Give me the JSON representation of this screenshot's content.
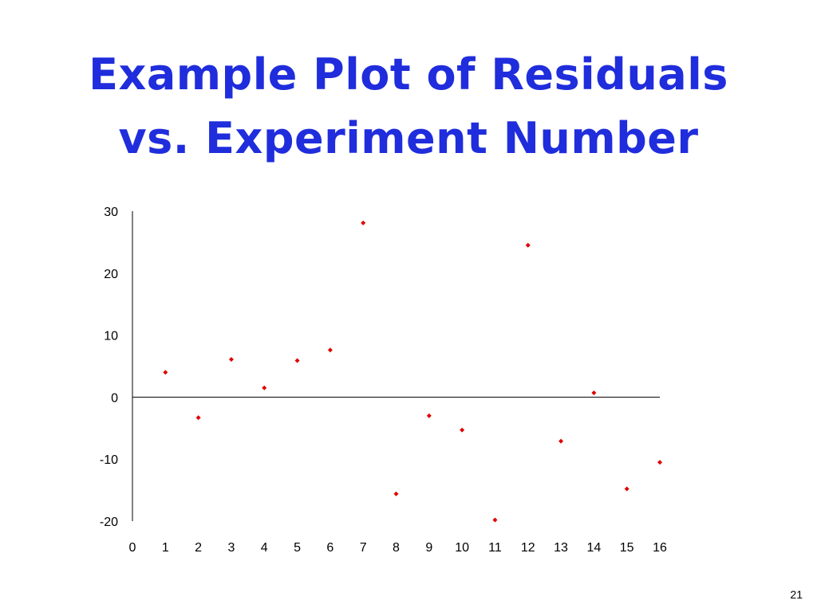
{
  "slide": {
    "title_line_1": "Example Plot of Residuals",
    "title_line_2": "vs. Experiment Number",
    "page_number": "21",
    "title_color": "#1f2ddc"
  },
  "chart_data": {
    "type": "scatter",
    "x": [
      1,
      2,
      3,
      4,
      5,
      6,
      7,
      8,
      9,
      10,
      11,
      12,
      13,
      14,
      15,
      16
    ],
    "y": [
      4,
      -3.3,
      6.1,
      1.5,
      5.9,
      7.6,
      28.1,
      -15.6,
      -3,
      -5.3,
      -19.8,
      24.5,
      -7.1,
      0.7,
      -14.8,
      -10.5
    ],
    "xlim": [
      0,
      16
    ],
    "ylim": [
      -20,
      30
    ],
    "x_ticks": [
      "0",
      "1",
      "2",
      "3",
      "4",
      "5",
      "6",
      "7",
      "8",
      "9",
      "10",
      "11",
      "12",
      "13",
      "14",
      "15",
      "16"
    ],
    "y_ticks": [
      "30",
      "20",
      "10",
      "0",
      "-10",
      "-20"
    ],
    "title": "",
    "xlabel": "",
    "ylabel": "",
    "grid": false,
    "marker": "diamond",
    "marker_color": "#e00000"
  }
}
